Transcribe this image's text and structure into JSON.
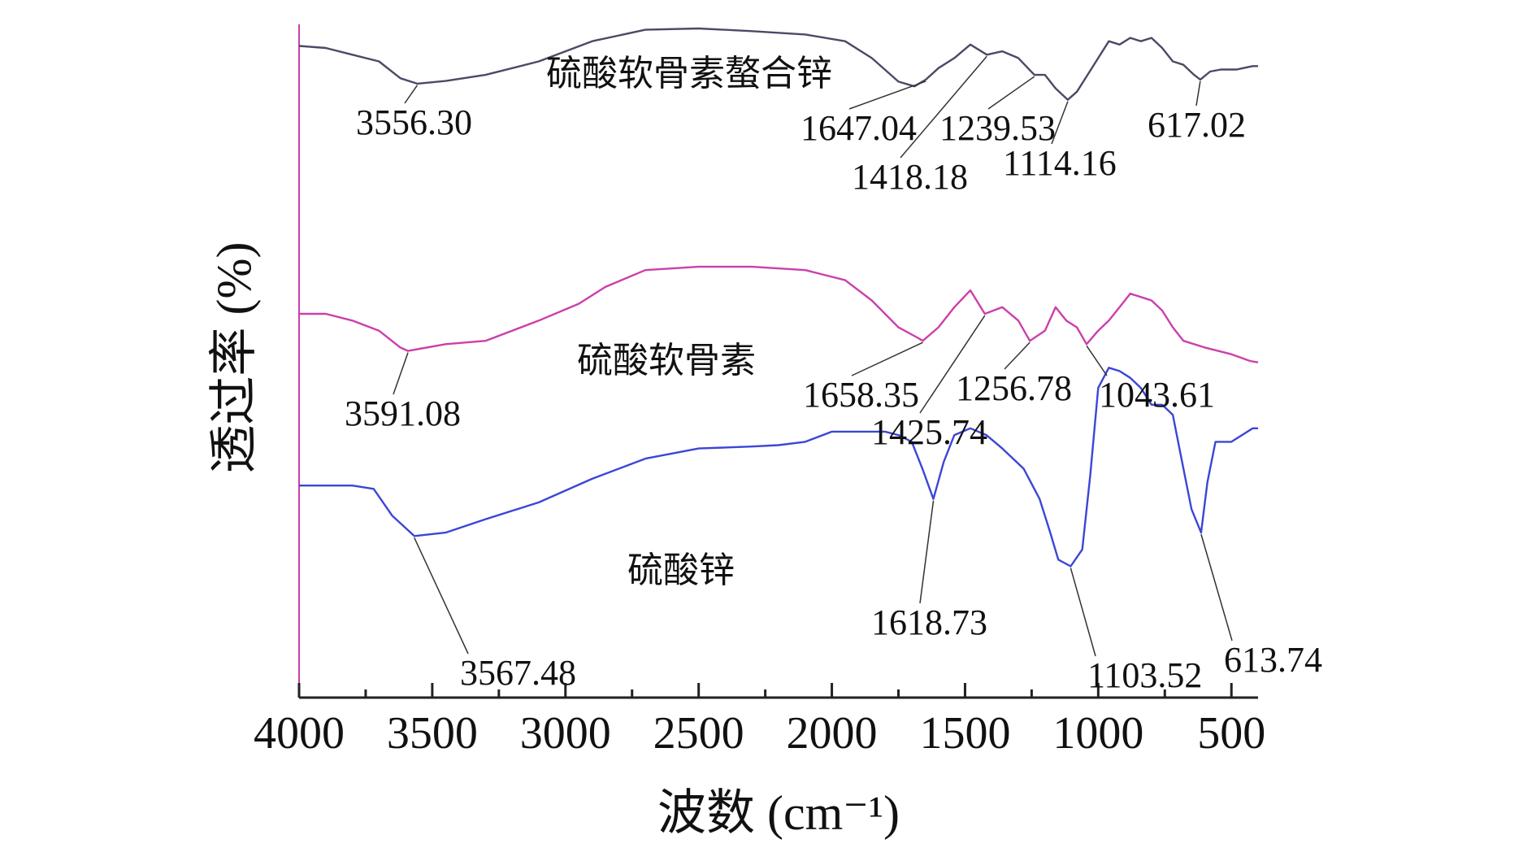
{
  "chart_data": {
    "type": "line",
    "title": "",
    "xlabel": "波数 (cm⁻¹)",
    "ylabel": "透过率 (%)",
    "xlim": [
      4000,
      400
    ],
    "x_reversed": true,
    "y_units": "arbitrary, stacked offsets",
    "ticks": [
      "4000",
      "3500",
      "3000",
      "2500",
      "2000",
      "1500",
      "1000",
      "500"
    ],
    "grid": false,
    "legend": "none",
    "series": [
      {
        "name": "硫酸软骨素螯合锌",
        "color": "#4a4a66",
        "points": [
          [
            4000,
            96.8
          ],
          [
            3900,
            96.5
          ],
          [
            3800,
            95.5
          ],
          [
            3700,
            94.5
          ],
          [
            3620,
            92.0
          ],
          [
            3556.3,
            91.2
          ],
          [
            3450,
            91.6
          ],
          [
            3300,
            92.5
          ],
          [
            3100,
            94.5
          ],
          [
            2900,
            97.5
          ],
          [
            2700,
            99.2
          ],
          [
            2500,
            99.4
          ],
          [
            2300,
            99.0
          ],
          [
            2100,
            98.5
          ],
          [
            1950,
            97.5
          ],
          [
            1850,
            95.0
          ],
          [
            1750,
            91.5
          ],
          [
            1690,
            90.8
          ],
          [
            1647.04,
            91.8
          ],
          [
            1600,
            93.5
          ],
          [
            1540,
            95.0
          ],
          [
            1480,
            97.0
          ],
          [
            1418.18,
            95.5
          ],
          [
            1360,
            96.0
          ],
          [
            1300,
            95.0
          ],
          [
            1239.53,
            92.5
          ],
          [
            1200,
            92.5
          ],
          [
            1160,
            90.5
          ],
          [
            1114.16,
            88.8
          ],
          [
            1080,
            90.0
          ],
          [
            1040,
            92.5
          ],
          [
            1000,
            95.0
          ],
          [
            960,
            97.5
          ],
          [
            920,
            97.0
          ],
          [
            880,
            98.0
          ],
          [
            840,
            97.5
          ],
          [
            800,
            98.0
          ],
          [
            760,
            96.5
          ],
          [
            720,
            94.5
          ],
          [
            680,
            94.0
          ],
          [
            640,
            92.5
          ],
          [
            617.02,
            91.8
          ],
          [
            580,
            93.0
          ],
          [
            540,
            93.3
          ],
          [
            480,
            93.3
          ],
          [
            420,
            93.8
          ],
          [
            400,
            93.8
          ]
        ]
      },
      {
        "name": "硫酸软骨素",
        "color": "#cc3faa",
        "points": [
          [
            4000,
            57.0
          ],
          [
            3900,
            57.0
          ],
          [
            3800,
            56.0
          ],
          [
            3700,
            54.5
          ],
          [
            3620,
            52.0
          ],
          [
            3591.08,
            51.5
          ],
          [
            3450,
            52.5
          ],
          [
            3300,
            53.0
          ],
          [
            3100,
            56.0
          ],
          [
            2950,
            58.5
          ],
          [
            2850,
            61.0
          ],
          [
            2700,
            63.5
          ],
          [
            2500,
            64.0
          ],
          [
            2300,
            64.0
          ],
          [
            2100,
            63.5
          ],
          [
            1950,
            62.0
          ],
          [
            1850,
            59.0
          ],
          [
            1750,
            55.0
          ],
          [
            1680,
            53.5
          ],
          [
            1658.35,
            53.0
          ],
          [
            1600,
            55.0
          ],
          [
            1540,
            58.0
          ],
          [
            1480,
            60.5
          ],
          [
            1425.74,
            57.0
          ],
          [
            1360,
            58.0
          ],
          [
            1300,
            56.0
          ],
          [
            1256.78,
            53.0
          ],
          [
            1200,
            54.5
          ],
          [
            1160,
            58.0
          ],
          [
            1120,
            56.0
          ],
          [
            1080,
            55.0
          ],
          [
            1043.61,
            52.5
          ],
          [
            1000,
            54.5
          ],
          [
            960,
            56.0
          ],
          [
            920,
            58.0
          ],
          [
            880,
            60.0
          ],
          [
            840,
            59.5
          ],
          [
            800,
            59.0
          ],
          [
            760,
            57.5
          ],
          [
            720,
            55.0
          ],
          [
            680,
            53.0
          ],
          [
            600,
            52.0
          ],
          [
            500,
            51.0
          ],
          [
            430,
            50.0
          ],
          [
            400,
            49.8
          ]
        ]
      },
      {
        "name": "硫酸锌",
        "color": "#3b46d6",
        "points": [
          [
            4000,
            31.5
          ],
          [
            3800,
            31.5
          ],
          [
            3720,
            31.0
          ],
          [
            3650,
            27.0
          ],
          [
            3567.48,
            24.0
          ],
          [
            3450,
            24.5
          ],
          [
            3300,
            26.5
          ],
          [
            3100,
            29.0
          ],
          [
            2900,
            32.5
          ],
          [
            2700,
            35.5
          ],
          [
            2500,
            37.0
          ],
          [
            2300,
            37.3
          ],
          [
            2200,
            37.5
          ],
          [
            2100,
            38.0
          ],
          [
            2000,
            39.5
          ],
          [
            1900,
            39.5
          ],
          [
            1800,
            39.5
          ],
          [
            1750,
            39.0
          ],
          [
            1700,
            38.0
          ],
          [
            1660,
            34.0
          ],
          [
            1618.73,
            29.5
          ],
          [
            1580,
            35.0
          ],
          [
            1540,
            39.0
          ],
          [
            1480,
            40.0
          ],
          [
            1420,
            39.0
          ],
          [
            1360,
            37.0
          ],
          [
            1280,
            34.0
          ],
          [
            1220,
            29.5
          ],
          [
            1180,
            24.5
          ],
          [
            1150,
            20.5
          ],
          [
            1103.52,
            19.5
          ],
          [
            1060,
            22.0
          ],
          [
            1030,
            33.0
          ],
          [
            1000,
            46.0
          ],
          [
            960,
            49.0
          ],
          [
            920,
            48.5
          ],
          [
            880,
            47.5
          ],
          [
            840,
            46.0
          ],
          [
            800,
            43.5
          ],
          [
            760,
            43.5
          ],
          [
            720,
            42.0
          ],
          [
            690,
            36.0
          ],
          [
            650,
            28.0
          ],
          [
            613.74,
            24.5
          ],
          [
            590,
            32.0
          ],
          [
            560,
            38.0
          ],
          [
            500,
            38.0
          ],
          [
            460,
            39.0
          ],
          [
            420,
            40.0
          ],
          [
            400,
            40.0
          ]
        ]
      }
    ],
    "series_labels": [
      "硫酸软骨素螯合锌",
      "硫酸软骨素",
      "硫酸锌"
    ],
    "peak_labels": [
      {
        "series": 0,
        "x": 3556.3,
        "text": "3556.30"
      },
      {
        "series": 0,
        "x": 1647.04,
        "text": "1647.04"
      },
      {
        "series": 0,
        "x": 1418.18,
        "text": "1418.18"
      },
      {
        "series": 0,
        "x": 1239.53,
        "text": "1239.53"
      },
      {
        "series": 0,
        "x": 1114.16,
        "text": "1114.16"
      },
      {
        "series": 0,
        "x": 617.02,
        "text": "617.02"
      },
      {
        "series": 1,
        "x": 3591.08,
        "text": "3591.08"
      },
      {
        "series": 1,
        "x": 1658.35,
        "text": "1658.35"
      },
      {
        "series": 1,
        "x": 1425.74,
        "text": "1425.74"
      },
      {
        "series": 1,
        "x": 1256.78,
        "text": "1256.78"
      },
      {
        "series": 1,
        "x": 1043.61,
        "text": "1043.61"
      },
      {
        "series": 2,
        "x": 3567.48,
        "text": "3567.48"
      },
      {
        "series": 2,
        "x": 1618.73,
        "text": "1618.73"
      },
      {
        "series": 2,
        "x": 1103.52,
        "text": "1103.52"
      },
      {
        "series": 2,
        "x": 613.74,
        "text": "613.74"
      }
    ]
  }
}
